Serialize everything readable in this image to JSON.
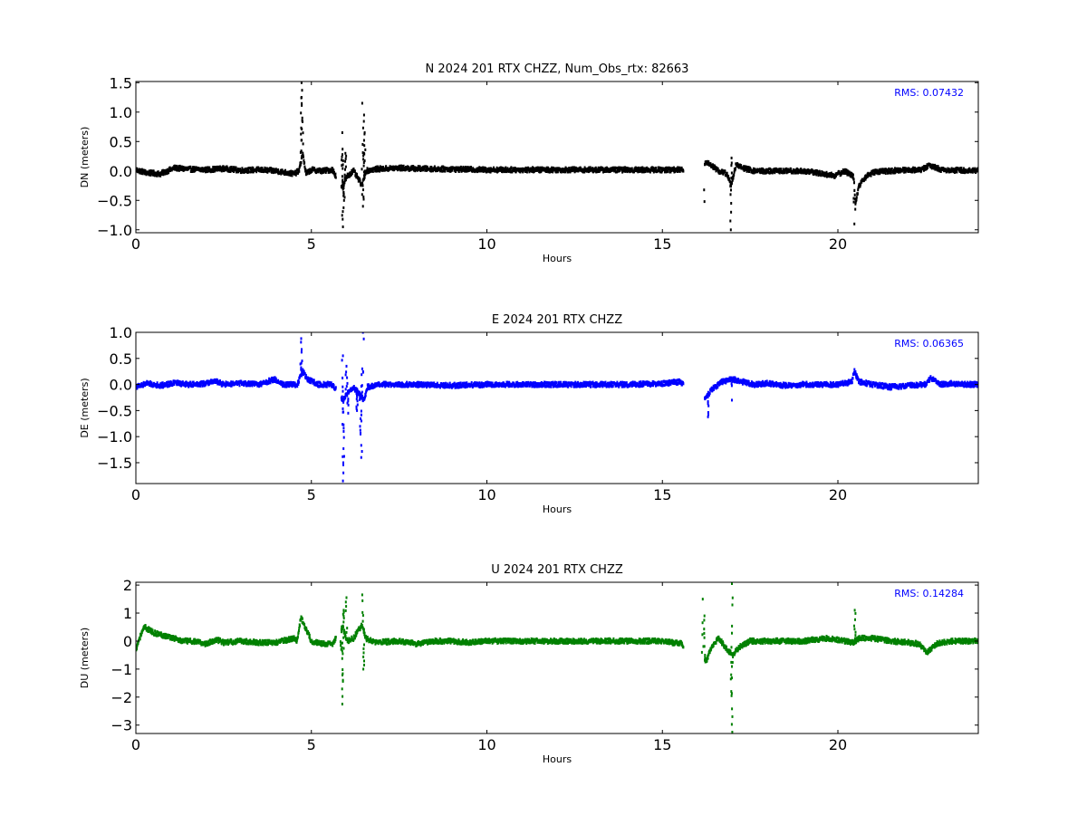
{
  "chart_data": [
    {
      "type": "scatter",
      "title": "N 2024 201 RTX  CHZZ, Num_Obs_rtx: 82663",
      "xlabel": "Hours",
      "ylabel": "DN (meters)",
      "xlim": [
        0,
        24
      ],
      "ylim": [
        -1.05,
        1.52
      ],
      "xticks": [
        0,
        5,
        10,
        15,
        20
      ],
      "yticks": [
        -1.0,
        -0.5,
        0.0,
        0.5,
        1.0,
        1.5
      ],
      "ytick_labels": [
        "−1.0",
        "−0.5",
        "0.0",
        "0.5",
        "1.0",
        "1.5"
      ],
      "color": "#000000",
      "annotation": "RMS:  0.07432",
      "annotation_color": "#0000ff",
      "gaps": [
        [
          5.7,
          5.85
        ],
        [
          15.6,
          16.2
        ]
      ],
      "trace": [
        [
          0,
          0.02
        ],
        [
          0.3,
          -0.03
        ],
        [
          0.7,
          -0.05
        ],
        [
          1.1,
          0.05
        ],
        [
          1.5,
          0.03
        ],
        [
          2,
          0.02
        ],
        [
          2.5,
          0.04
        ],
        [
          3,
          0.01
        ],
        [
          3.5,
          0.02
        ],
        [
          4,
          0.0
        ],
        [
          4.5,
          -0.05
        ],
        [
          4.65,
          0.0
        ],
        [
          4.75,
          0.3
        ],
        [
          4.85,
          -0.05
        ],
        [
          5,
          0.02
        ],
        [
          5.3,
          0.0
        ],
        [
          5.6,
          0.02
        ],
        [
          5.9,
          -0.3
        ],
        [
          6,
          -0.1
        ],
        [
          6.2,
          0.0
        ],
        [
          6.45,
          -0.25
        ],
        [
          6.55,
          0.0
        ],
        [
          6.8,
          0.03
        ],
        [
          7.5,
          0.05
        ],
        [
          8,
          0.04
        ],
        [
          9,
          0.03
        ],
        [
          10,
          0.02
        ],
        [
          11,
          0.02
        ],
        [
          12,
          0.02
        ],
        [
          13,
          0.02
        ],
        [
          14,
          0.02
        ],
        [
          15,
          0.02
        ],
        [
          15.55,
          0.02
        ],
        [
          16.25,
          0.15
        ],
        [
          16.4,
          0.1
        ],
        [
          16.6,
          0.0
        ],
        [
          16.85,
          -0.05
        ],
        [
          16.95,
          -0.25
        ],
        [
          17.1,
          0.1
        ],
        [
          17.3,
          0.05
        ],
        [
          17.6,
          0.0
        ],
        [
          18,
          0.0
        ],
        [
          18.5,
          0.0
        ],
        [
          19,
          0.0
        ],
        [
          19.5,
          -0.04
        ],
        [
          19.9,
          -0.08
        ],
        [
          20.2,
          0.0
        ],
        [
          20.45,
          -0.1
        ],
        [
          20.5,
          -0.55
        ],
        [
          20.6,
          -0.25
        ],
        [
          20.8,
          -0.1
        ],
        [
          21,
          -0.02
        ],
        [
          21.5,
          0.0
        ],
        [
          22,
          0.02
        ],
        [
          22.4,
          0.02
        ],
        [
          22.6,
          0.1
        ],
        [
          22.8,
          0.05
        ],
        [
          23,
          0.02
        ],
        [
          23.5,
          0.01
        ],
        [
          24,
          0.01
        ]
      ],
      "outliers": [
        [
          4.72,
          1.5
        ],
        [
          4.72,
          1.25
        ],
        [
          4.74,
          0.9
        ],
        [
          5.88,
          0.65
        ],
        [
          5.89,
          0.37
        ],
        [
          5.9,
          -0.95
        ],
        [
          5.93,
          -0.5
        ],
        [
          5.97,
          0.3
        ],
        [
          6.45,
          1.15
        ],
        [
          6.47,
          -0.6
        ],
        [
          6.5,
          0.95
        ],
        [
          6.52,
          0.65
        ],
        [
          6.5,
          0.3
        ],
        [
          16.2,
          -0.52
        ],
        [
          16.95,
          -1.0
        ],
        [
          16.97,
          0.22
        ],
        [
          20.47,
          -0.9
        ]
      ]
    },
    {
      "type": "scatter",
      "title": "E 2024 201 RTX  CHZZ",
      "xlabel": "Hours",
      "ylabel": "DE (meters)",
      "xlim": [
        0,
        24
      ],
      "ylim": [
        -1.9,
        1.0
      ],
      "xticks": [
        0,
        5,
        10,
        15,
        20
      ],
      "yticks": [
        -1.5,
        -1.0,
        -0.5,
        0.0,
        0.5,
        1.0
      ],
      "ytick_labels": [
        "−1.5",
        "−1.0",
        "−0.5",
        "0.0",
        "0.5",
        "1.0"
      ],
      "color": "#0000ff",
      "annotation": "RMS:  0.06365",
      "annotation_color": "#0000ff",
      "gaps": [
        [
          5.7,
          5.85
        ],
        [
          15.6,
          16.2
        ]
      ],
      "trace": [
        [
          0,
          -0.05
        ],
        [
          0.3,
          0.02
        ],
        [
          0.7,
          -0.02
        ],
        [
          1.1,
          0.03
        ],
        [
          1.5,
          0.0
        ],
        [
          2,
          0.02
        ],
        [
          2.25,
          0.07
        ],
        [
          2.5,
          0.0
        ],
        [
          3,
          0.02
        ],
        [
          3.5,
          0.0
        ],
        [
          3.95,
          0.1
        ],
        [
          4.2,
          0.0
        ],
        [
          4.6,
          0.0
        ],
        [
          4.75,
          0.25
        ],
        [
          4.9,
          0.1
        ],
        [
          5.2,
          0.0
        ],
        [
          5.6,
          0.0
        ],
        [
          5.9,
          -0.3
        ],
        [
          6.0,
          -0.2
        ],
        [
          6.2,
          -0.05
        ],
        [
          6.5,
          -0.3
        ],
        [
          6.6,
          -0.05
        ],
        [
          7,
          0.0
        ],
        [
          8,
          0.0
        ],
        [
          9,
          -0.02
        ],
        [
          10,
          0.0
        ],
        [
          11,
          0.0
        ],
        [
          12,
          0.0
        ],
        [
          13,
          0.0
        ],
        [
          14,
          0.0
        ],
        [
          15,
          0.02
        ],
        [
          15.5,
          0.05
        ],
        [
          16.25,
          -0.25
        ],
        [
          16.4,
          -0.1
        ],
        [
          16.7,
          0.05
        ],
        [
          17,
          0.1
        ],
        [
          17.3,
          0.05
        ],
        [
          17.6,
          0.0
        ],
        [
          18,
          0.02
        ],
        [
          18.5,
          -0.02
        ],
        [
          19,
          0.0
        ],
        [
          19.5,
          0.0
        ],
        [
          20,
          0.0
        ],
        [
          20.4,
          0.05
        ],
        [
          20.47,
          0.25
        ],
        [
          20.6,
          0.05
        ],
        [
          21,
          0.0
        ],
        [
          21.5,
          -0.05
        ],
        [
          22,
          -0.02
        ],
        [
          22.5,
          0.0
        ],
        [
          22.65,
          0.12
        ],
        [
          22.9,
          0.0
        ],
        [
          23.2,
          0.02
        ],
        [
          23.6,
          0.0
        ],
        [
          24,
          0.0
        ]
      ],
      "outliers": [
        [
          4.71,
          0.88
        ],
        [
          4.72,
          0.62
        ],
        [
          5.9,
          -1.85
        ],
        [
          5.91,
          -1.5
        ],
        [
          5.92,
          -0.9
        ],
        [
          5.9,
          0.55
        ],
        [
          6.0,
          0.35
        ],
        [
          6.05,
          -0.55
        ],
        [
          6.4,
          -0.95
        ],
        [
          6.42,
          -1.4
        ],
        [
          6.45,
          0.3
        ],
        [
          6.47,
          1.0
        ],
        [
          6.3,
          -0.5
        ],
        [
          16.3,
          -0.62
        ],
        [
          16.98,
          -0.3
        ]
      ]
    },
    {
      "type": "scatter",
      "title": "U 2024 201 RTX  CHZZ",
      "xlabel": "Hours",
      "ylabel": "DU (meters)",
      "xlim": [
        0,
        24
      ],
      "ylim": [
        -3.3,
        2.1
      ],
      "xticks": [
        0,
        5,
        10,
        15,
        20
      ],
      "yticks": [
        -3,
        -2,
        -1,
        0,
        1,
        2
      ],
      "ytick_labels": [
        "−3",
        "−2",
        "−1",
        "0",
        "1",
        "2"
      ],
      "color": "#008000",
      "annotation": "RMS:  0.14284",
      "annotation_color": "#0000ff",
      "gaps": [
        [
          5.7,
          5.85
        ],
        [
          15.6,
          16.2
        ]
      ],
      "trace": [
        [
          0,
          -0.3
        ],
        [
          0.1,
          0.1
        ],
        [
          0.25,
          0.5
        ],
        [
          0.5,
          0.3
        ],
        [
          0.8,
          0.2
        ],
        [
          1.1,
          0.1
        ],
        [
          1.3,
          0.0
        ],
        [
          1.6,
          0.0
        ],
        [
          2,
          -0.1
        ],
        [
          2.3,
          0.05
        ],
        [
          2.5,
          -0.05
        ],
        [
          3,
          0.0
        ],
        [
          3.5,
          -0.05
        ],
        [
          4,
          -0.05
        ],
        [
          4.5,
          0.1
        ],
        [
          4.6,
          0.0
        ],
        [
          4.7,
          0.85
        ],
        [
          4.9,
          0.3
        ],
        [
          5.0,
          0.0
        ],
        [
          5.3,
          -0.1
        ],
        [
          5.6,
          -0.1
        ],
        [
          5.9,
          0.5
        ],
        [
          6.0,
          0.0
        ],
        [
          6.2,
          0.1
        ],
        [
          6.45,
          0.6
        ],
        [
          6.55,
          0.1
        ],
        [
          6.8,
          -0.05
        ],
        [
          7.5,
          0.0
        ],
        [
          8,
          -0.1
        ],
        [
          8.5,
          0.0
        ],
        [
          9,
          0.0
        ],
        [
          9.5,
          -0.05
        ],
        [
          10,
          0.0
        ],
        [
          11,
          0.0
        ],
        [
          12,
          0.0
        ],
        [
          13,
          0.0
        ],
        [
          14,
          0.0
        ],
        [
          15,
          0.0
        ],
        [
          15.55,
          -0.1
        ],
        [
          16.25,
          -0.7
        ],
        [
          16.4,
          -0.2
        ],
        [
          16.6,
          0.1
        ],
        [
          16.85,
          -0.3
        ],
        [
          17.0,
          -0.5
        ],
        [
          17.2,
          -0.2
        ],
        [
          17.5,
          0.0
        ],
        [
          18,
          0.0
        ],
        [
          19,
          0.0
        ],
        [
          19.7,
          0.1
        ],
        [
          20.2,
          0.0
        ],
        [
          20.45,
          -0.05
        ],
        [
          20.6,
          0.1
        ],
        [
          21,
          0.1
        ],
        [
          21.5,
          0.0
        ],
        [
          22,
          -0.05
        ],
        [
          22.3,
          -0.1
        ],
        [
          22.55,
          -0.4
        ],
        [
          22.8,
          -0.1
        ],
        [
          23.2,
          0.0
        ],
        [
          24,
          0.0
        ]
      ],
      "outliers": [
        [
          5.88,
          -2.25
        ],
        [
          5.9,
          -1.4
        ],
        [
          5.92,
          1.1
        ],
        [
          6.0,
          1.55
        ],
        [
          5.85,
          -0.3
        ],
        [
          6.45,
          1.65
        ],
        [
          6.48,
          -1.0
        ],
        [
          16.15,
          1.5
        ],
        [
          16.2,
          0.9
        ],
        [
          16.97,
          -1.95
        ],
        [
          16.98,
          2.05
        ],
        [
          16.99,
          -3.25
        ],
        [
          20.48,
          1.1
        ]
      ]
    }
  ]
}
